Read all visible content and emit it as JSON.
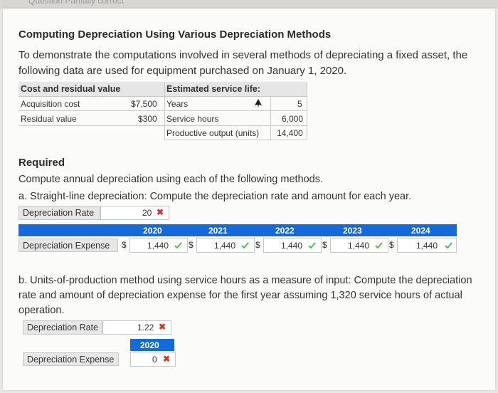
{
  "header": {
    "ghost_text": "Question  Partially correct"
  },
  "title": "Computing Depreciation Using Various Depreciation Methods",
  "intro": "To demonstrate the computations involved in several methods of depreciating a fixed asset, the following data are used for equipment purchased on January 1, 2020.",
  "data_table": {
    "left_header": "Cost and residual value",
    "right_header": "Estimated service life:",
    "acq_label": "Acquisition cost",
    "acq_value": "$7,500",
    "res_label": "Residual value",
    "res_value": "$300",
    "years_label": "Years",
    "years_value": "5",
    "hours_label": "Service hours",
    "hours_value": "6,000",
    "output_label": "Productive output (units)",
    "output_value": "14,400"
  },
  "required": {
    "heading": "Required",
    "instruction": "Compute annual depreciation using each of the following methods.",
    "part_a": "a. Straight-line depreciation: Compute the depreciation rate and amount for each year.",
    "part_b": "b. Units-of-production method using service hours as a measure of input: Compute the depreciation rate and amount of depreciation expense for the first year assuming 1,320 service hours of actual operation."
  },
  "part_a": {
    "rate_label": "Depreciation Rate",
    "rate_value": "20",
    "rate_status": "incorrect",
    "expense_label": "Depreciation Expense",
    "currency": "$",
    "years": [
      "2020",
      "2021",
      "2022",
      "2023",
      "2024"
    ],
    "values": [
      "1,440",
      "1,440",
      "1,440",
      "1,440",
      "1,440"
    ],
    "status": "correct"
  },
  "part_b": {
    "rate_label": "Depreciation Rate",
    "rate_value": "1.22",
    "rate_status": "incorrect",
    "year": "2020",
    "expense_label": "Depreciation Expense",
    "expense_value": "0",
    "expense_status": "incorrect"
  },
  "colors": {
    "accent_blue": "#1669d8",
    "correct": "#58b957",
    "incorrect": "#d0362d"
  },
  "icons": {
    "check": "checkmark-icon",
    "cross": "x-mark-icon",
    "cursor": "mouse-cursor-icon"
  }
}
